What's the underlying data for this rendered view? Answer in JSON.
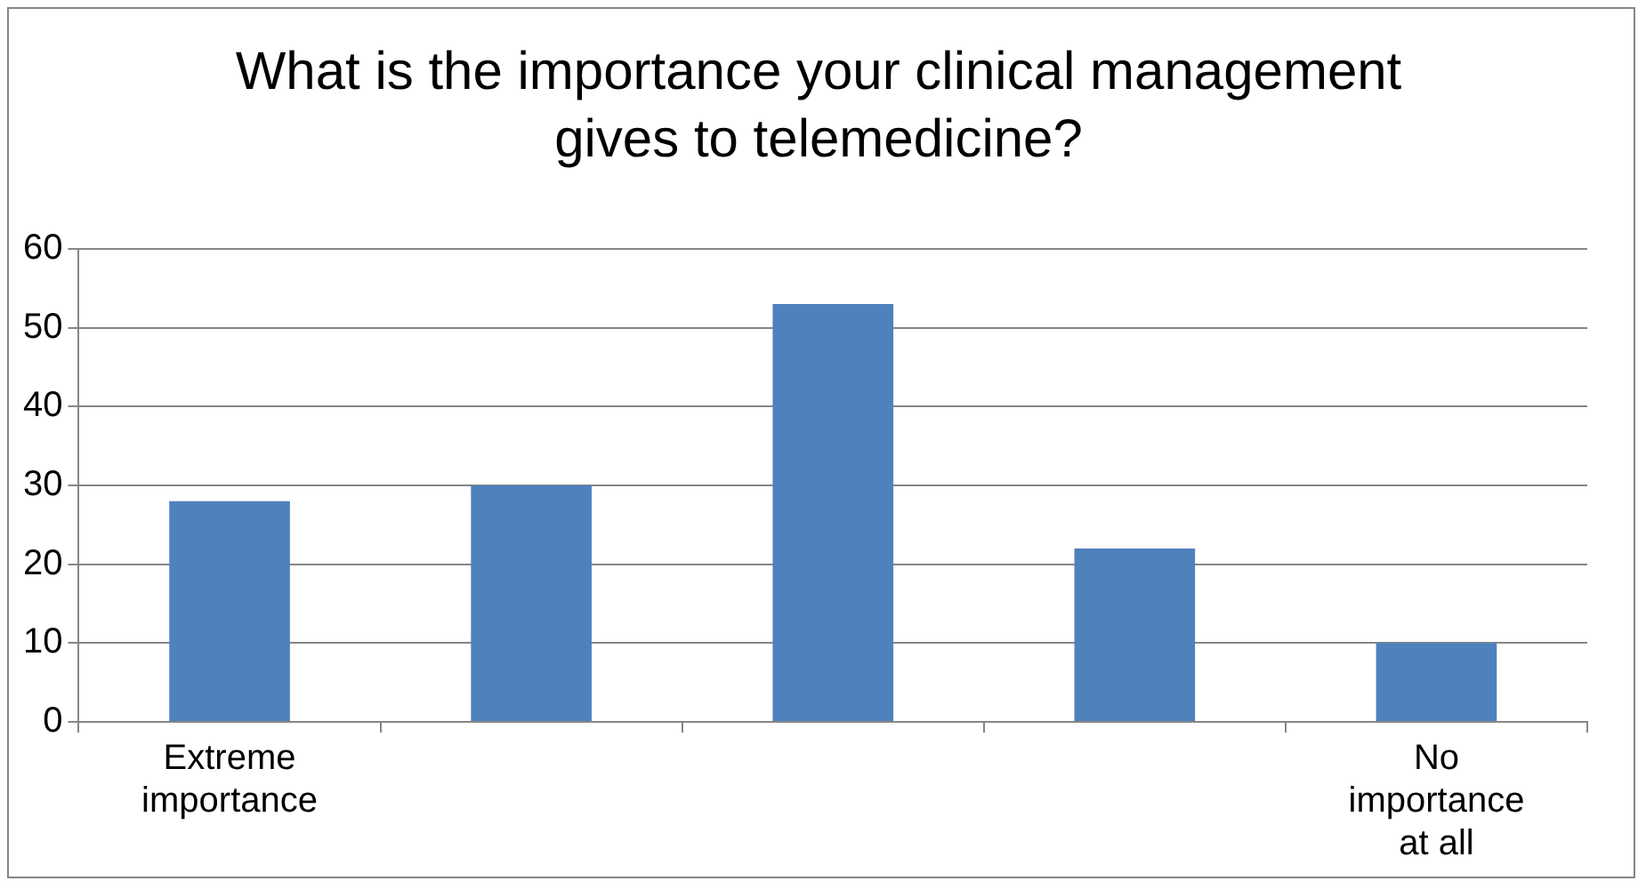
{
  "chart_data": {
    "type": "bar",
    "title": "What is the importance your clinical management gives to telemedicine?",
    "categories": [
      "Extreme importance",
      null,
      null,
      null,
      "No importance at all"
    ],
    "values": [
      28,
      30,
      53,
      22,
      10
    ],
    "color": "#4f81bd",
    "ylim": [
      0,
      60
    ],
    "yticks": [
      0,
      10,
      20,
      30,
      40,
      50,
      60
    ],
    "grid": "y"
  }
}
